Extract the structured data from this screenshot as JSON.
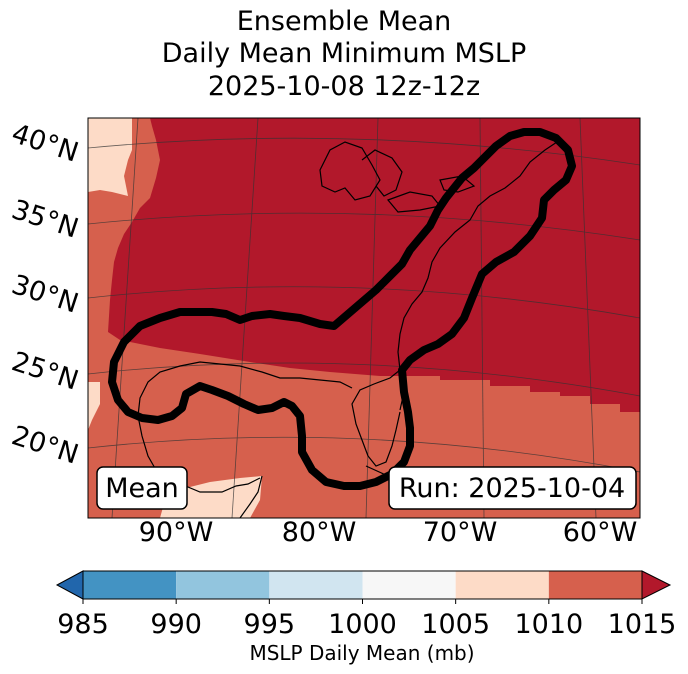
{
  "title": {
    "line1": "Ensemble Mean",
    "line2": "Daily Mean Minimum MSLP",
    "line3": "2025-10-08 12z-12z"
  },
  "map": {
    "lat_labels": [
      "40°N",
      "35°N",
      "30°N",
      "25°N",
      "20°N"
    ],
    "lon_labels": [
      "90°W",
      "80°W",
      "70°W",
      "60°W"
    ],
    "left_box_text": "Mean",
    "right_box_text": "Run: 2025-10-04",
    "region": "Eastern United States, Gulf of Mexico and western Atlantic",
    "contour_description": "thick black outline of the ensemble probability region along the Gulf coast and US east coast"
  },
  "colorbar": {
    "title": "MSLP Daily Mean (mb)",
    "ticks": [
      "985",
      "990",
      "995",
      "1000",
      "1005",
      "1010",
      "1015"
    ],
    "bins": [
      {
        "range": [
          985,
          990
        ],
        "color": "#4393c3"
      },
      {
        "range": [
          990,
          995
        ],
        "color": "#92c5de"
      },
      {
        "range": [
          995,
          1000
        ],
        "color": "#d1e5f0"
      },
      {
        "range": [
          1000,
          1005
        ],
        "color": "#f7f7f7"
      },
      {
        "range": [
          1005,
          1010
        ],
        "color": "#fddbc7"
      },
      {
        "range": [
          1010,
          1015
        ],
        "color": "#d6604d"
      }
    ],
    "under_color": "#2166ac",
    "over_color": "#b2182b"
  },
  "colors": {
    "high": "#b2182b",
    "mid": "#d6604d",
    "low": "#fddbc7",
    "contour": "#000000"
  }
}
